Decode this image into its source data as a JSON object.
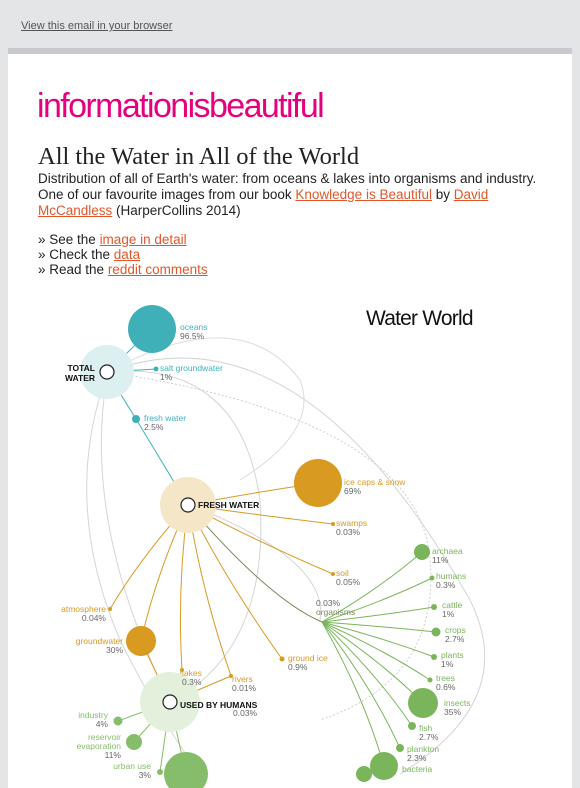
{
  "header": {
    "view_link": "View this email in your browser"
  },
  "brand": {
    "logo": "informationisbeautiful",
    "color": "#e5007d"
  },
  "article": {
    "title": "All the Water in All of the World",
    "intro_text": "Distribution of all of Earth's water: from oceans & lakes into organisms and industry. One of our favourite images from our book ",
    "book_link": "Knowledge is Beautiful",
    "by": " by ",
    "author_link": "David McCandless",
    "publisher": " (HarperCollins 2014)",
    "bullets": [
      {
        "prefix": "» See the ",
        "link": "image in detail"
      },
      {
        "prefix": "» Check the ",
        "link": "data"
      },
      {
        "prefix": "» Read the ",
        "link": "reddit comments"
      }
    ],
    "link_color": "#e2572a"
  },
  "infographic": {
    "title": "Water World",
    "colors": {
      "ocean": "#3fb0b8",
      "fresh": "#d99a22",
      "organism": "#7ab55c",
      "human": "#86bd6b"
    },
    "nodes": {
      "total_water": "TOTAL\nWATER",
      "fresh_water": "FRESH WATER",
      "used_by_humans": "USED BY HUMANS"
    },
    "labels": [
      {
        "key": "oceans",
        "name": "oceans",
        "value": "96.5%"
      },
      {
        "key": "salt",
        "name": "salt groundwater",
        "value": "1%"
      },
      {
        "key": "fresh",
        "name": "fresh water",
        "value": "2.5%"
      },
      {
        "key": "ice",
        "name": "ice caps & snow",
        "value": "69%"
      },
      {
        "key": "swamps",
        "name": "swamps",
        "value": "0.03%"
      },
      {
        "key": "soil",
        "name": "soil",
        "value": "0.05%"
      },
      {
        "key": "atmosphere",
        "name": "atmosphere",
        "value": "0.04%"
      },
      {
        "key": "groundwater",
        "name": "groundwater",
        "value": "30%"
      },
      {
        "key": "groundice",
        "name": "ground ice",
        "value": "0.9%"
      },
      {
        "key": "lakes",
        "name": "lakes",
        "value": "0.3%"
      },
      {
        "key": "rivers",
        "name": "rivers",
        "value": "0.01%"
      },
      {
        "key": "used",
        "name": "",
        "value": "0.03%"
      },
      {
        "key": "organisms",
        "name": "organisms",
        "value": "0.03%"
      },
      {
        "key": "archaea",
        "name": "archaea",
        "value": "11%"
      },
      {
        "key": "humans",
        "name": "humans",
        "value": "0.3%"
      },
      {
        "key": "cattle",
        "name": "cattle",
        "value": "1%"
      },
      {
        "key": "crops",
        "name": "crops",
        "value": "2.7%"
      },
      {
        "key": "plants",
        "name": "plants",
        "value": "1%"
      },
      {
        "key": "trees",
        "name": "trees",
        "value": "0.6%"
      },
      {
        "key": "insects",
        "name": "insects",
        "value": "35%"
      },
      {
        "key": "fish",
        "name": "fish",
        "value": "2.7%"
      },
      {
        "key": "plankton",
        "name": "plankton",
        "value": "2.3%"
      },
      {
        "key": "bacteria",
        "name": "bacteria",
        "value": ""
      },
      {
        "key": "industry",
        "name": "industry",
        "value": "4%"
      },
      {
        "key": "reservoir",
        "name": "reservoir\nevaporation",
        "value": "11%"
      },
      {
        "key": "urban",
        "name": "urban use",
        "value": "3%"
      }
    ]
  }
}
